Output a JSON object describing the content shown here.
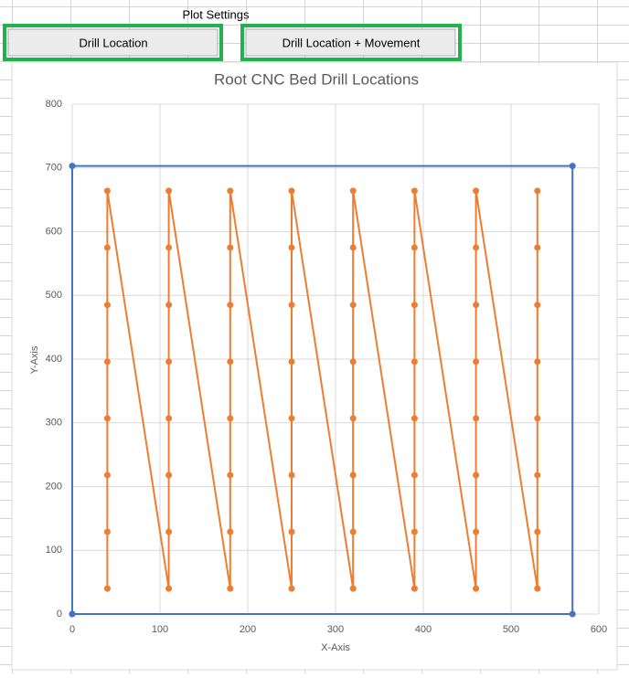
{
  "sheet": {
    "label": "Plot Settings",
    "buttons": [
      "Drill Location",
      "Drill Location + Movement"
    ]
  },
  "chart_data": {
    "type": "scatter",
    "title": "Root CNC Bed Drill Locations",
    "x_label": "X-Axis",
    "y_label": "Y-Axis",
    "xlim": [
      0,
      600
    ],
    "xticks": [
      0,
      100,
      200,
      300,
      400,
      500,
      600
    ],
    "ylim": [
      0,
      800
    ],
    "yticks": [
      0,
      100,
      200,
      300,
      400,
      500,
      600,
      700,
      800
    ],
    "grid": true,
    "series": [
      {
        "color": "#4472c4",
        "x": [
          0,
          0,
          570,
          570,
          0
        ],
        "values": [
          0,
          703,
          703,
          0,
          0
        ]
      },
      {
        "color": "#ed7d31",
        "x": [
          40,
          40,
          40,
          40,
          40,
          40,
          40,
          40,
          110,
          110,
          110,
          110,
          110,
          110,
          110,
          110,
          180,
          180,
          180,
          180,
          180,
          180,
          180,
          180,
          250,
          250,
          250,
          250,
          250,
          250,
          250,
          250,
          320,
          320,
          320,
          320,
          320,
          320,
          320,
          320,
          390,
          390,
          390,
          390,
          390,
          390,
          390,
          390,
          460,
          460,
          460,
          460,
          460,
          460,
          460,
          460,
          530,
          530,
          530,
          530,
          530,
          530,
          530,
          530
        ],
        "values": [
          40,
          129,
          218,
          307,
          396,
          485,
          575,
          664,
          40,
          129,
          218,
          307,
          396,
          485,
          575,
          664,
          40,
          129,
          218,
          307,
          396,
          485,
          575,
          664,
          40,
          129,
          218,
          307,
          396,
          485,
          575,
          664,
          40,
          129,
          218,
          307,
          396,
          485,
          575,
          664,
          40,
          129,
          218,
          307,
          396,
          485,
          575,
          664,
          40,
          129,
          218,
          307,
          396,
          485,
          575,
          664,
          40,
          129,
          218,
          307,
          396,
          485,
          575,
          664
        ]
      }
    ]
  }
}
